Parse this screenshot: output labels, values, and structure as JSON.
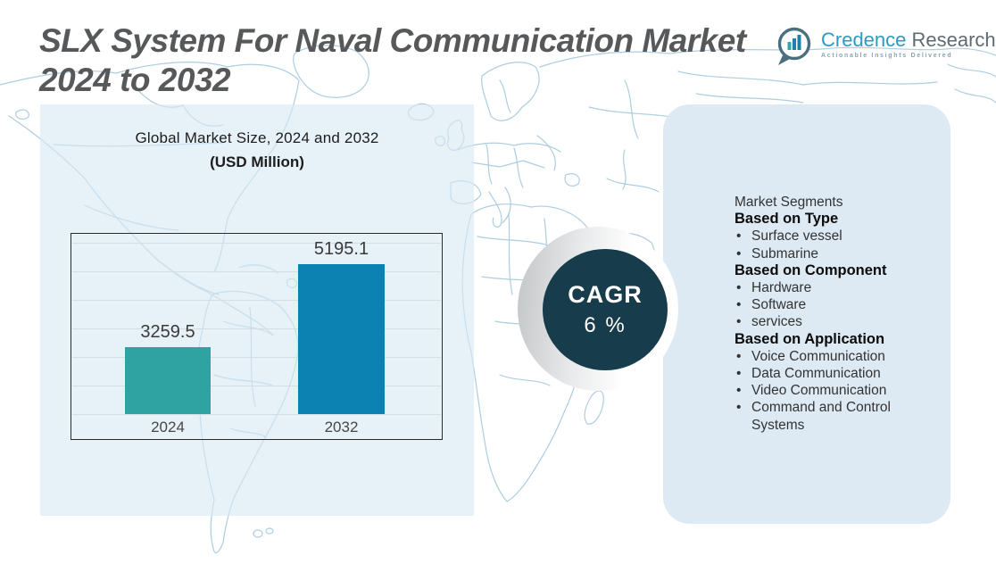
{
  "header": {
    "title_line1": "SLX System For Naval Communication Market",
    "title_line2": "2024 to 2032"
  },
  "logo": {
    "name_primary": "Credence",
    "name_secondary": "Research",
    "tagline": "Actionable Insights Delivered"
  },
  "chart": {
    "title_line1": "Global Market Size, 2024 and 2032",
    "title_line2": "(USD Million)"
  },
  "chart_data": {
    "type": "bar",
    "title": "Global Market Size, 2024 and 2032",
    "subtitle": "(USD Million)",
    "categories": [
      "2024",
      "2032"
    ],
    "values": [
      3259.5,
      5195.1
    ],
    "value_labels": [
      "3259.5",
      "5195.1"
    ],
    "bar_colors": [
      "#2fa2a2",
      "#0b82b2"
    ],
    "ylabel": "USD Million",
    "ylim": [
      1700,
      5700
    ],
    "grid": true,
    "legend": false
  },
  "cagr": {
    "label": "CAGR",
    "value": "6 %",
    "circle_color": "#173c4b"
  },
  "segments_panel": {
    "title": "Market Segments",
    "groups": [
      {
        "header": "Based on Type",
        "items": [
          "Surface vessel",
          "Submarine"
        ]
      },
      {
        "header": "Based on Component",
        "items": [
          "Hardware",
          "Software",
          "services"
        ]
      },
      {
        "header": "Based on Application",
        "items": [
          "Voice Communication",
          "Data Communication",
          "Video Communication",
          "Command and Control Systems"
        ]
      }
    ]
  },
  "colors": {
    "title_text": "#57585a",
    "map_outline": "#aecde0",
    "left_panel_bg": "#d9e9f3",
    "right_panel_bg": "#dbe9f3",
    "bar_2024": "#2fa2a2",
    "bar_2032": "#0b82b2",
    "cagr_circle": "#173c4b",
    "logo_primary": "#2b9ac6",
    "logo_secondary": "#5f6b73"
  }
}
